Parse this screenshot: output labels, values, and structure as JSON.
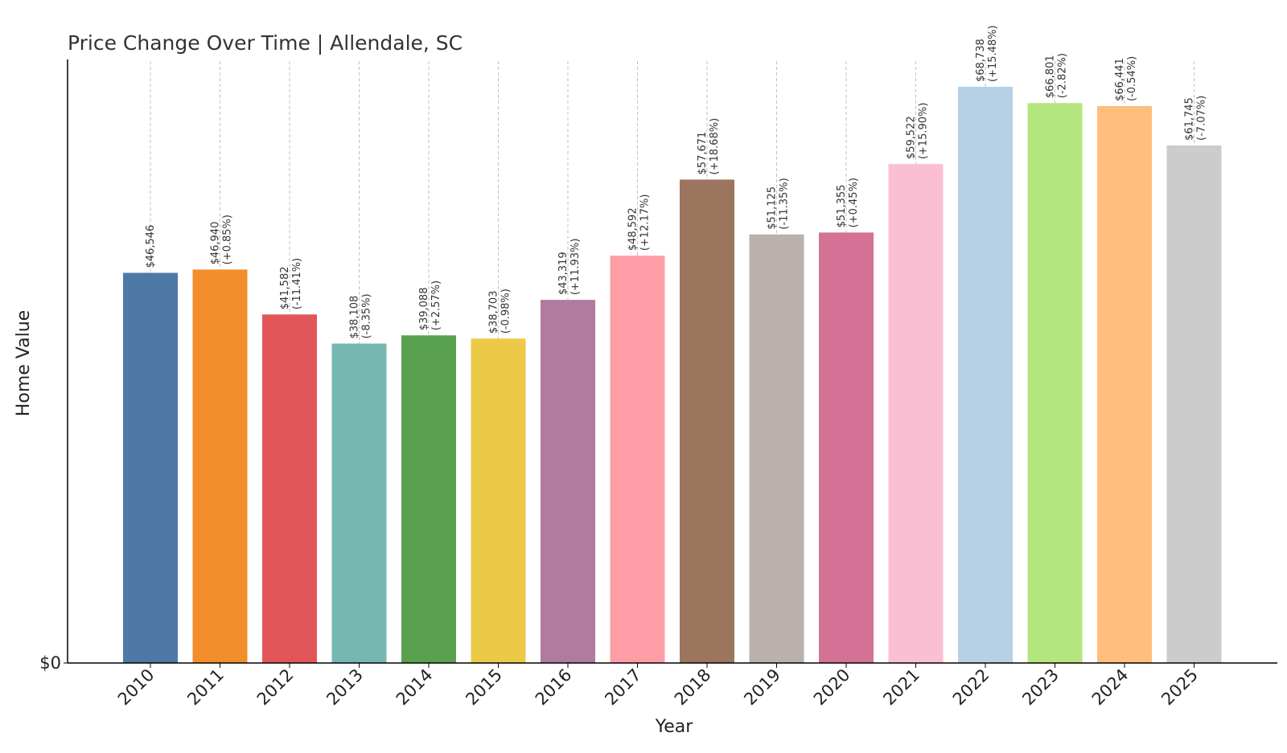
{
  "chart_data": {
    "type": "bar",
    "title": "Price Change Over Time | Allendale, SC",
    "xlabel": "Year",
    "ylabel": "Home Value",
    "ylim": [
      0,
      72000
    ],
    "y_tick_labels": [
      {
        "value": 0,
        "label": "$0"
      }
    ],
    "grid": "vertical dashed lines through bar centers",
    "categories": [
      "2010",
      "2011",
      "2012",
      "2013",
      "2014",
      "2015",
      "2016",
      "2017",
      "2018",
      "2019",
      "2020",
      "2021",
      "2022",
      "2023",
      "2024",
      "2025"
    ],
    "values": [
      46546,
      46940,
      41582,
      38108,
      39088,
      38703,
      43319,
      48592,
      57671,
      51125,
      51355,
      59522,
      68738,
      66801,
      66441,
      61745
    ],
    "value_labels": [
      "$46,546",
      "$46,940",
      "$41,582",
      "$38,108",
      "$39,088",
      "$38,703",
      "$43,319",
      "$48,592",
      "$57,671",
      "$51,125",
      "$51,355",
      "$59,522",
      "$68,738",
      "$66,801",
      "$66,441",
      "$61,745"
    ],
    "change_labels": [
      "",
      "(+0.85%)",
      "(-11.41%)",
      "(-8.35%)",
      "(+2.57%)",
      "(-0.98%)",
      "(+11.93%)",
      "(+12.17%)",
      "(+18.68%)",
      "(-11.35%)",
      "(+0.45%)",
      "(+15.90%)",
      "(+15.48%)",
      "(-2.82%)",
      "(-0.54%)",
      "(-7.07%)"
    ],
    "colors": [
      "#4e79a7",
      "#f28e2b",
      "#e15759",
      "#76b7b2",
      "#59a14f",
      "#edc948",
      "#b07aa1",
      "#ff9da7",
      "#9c755f",
      "#bab0ac",
      "#d37295",
      "#fabfd2",
      "#b6d0e6",
      "#b5e67d",
      "#ffbe7d",
      "#cccccc"
    ]
  }
}
